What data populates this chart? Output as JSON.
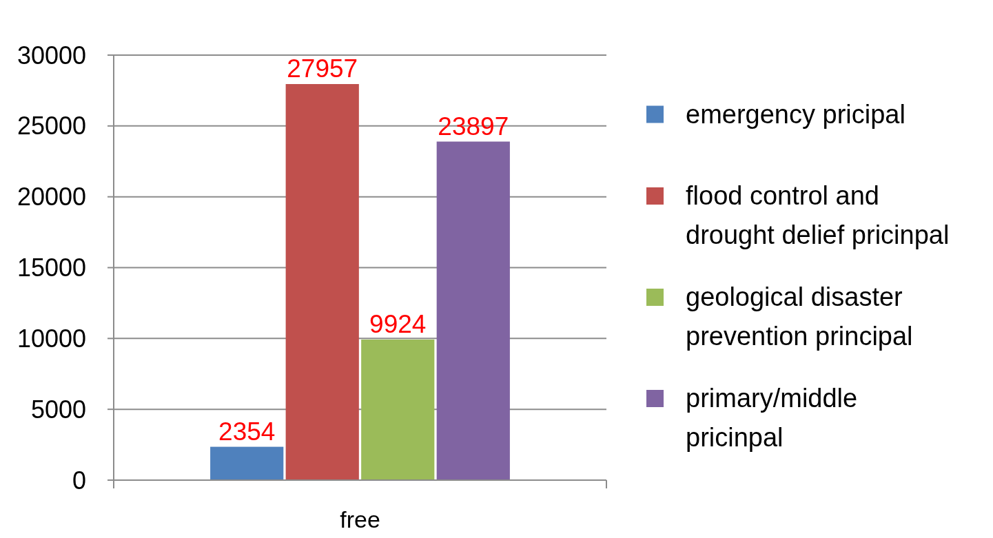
{
  "chart_data": {
    "type": "bar",
    "categories": [
      "free"
    ],
    "series": [
      {
        "name": "emergency pricipal",
        "color": "#4f81bd",
        "values": [
          2354
        ]
      },
      {
        "name": "flood control and drought delief pricinpal",
        "color": "#c0504d",
        "values": [
          27957
        ]
      },
      {
        "name": "geological disaster prevention principal",
        "color": "#9bbb59",
        "values": [
          9924
        ]
      },
      {
        "name": "primary/middle pricinpal",
        "color": "#8064a2",
        "values": [
          23897
        ]
      }
    ],
    "ylim": [
      0,
      30000
    ],
    "yticks": [
      0,
      5000,
      10000,
      15000,
      20000,
      25000,
      30000
    ],
    "grid": "y",
    "legend": "right",
    "data_labels": true
  }
}
